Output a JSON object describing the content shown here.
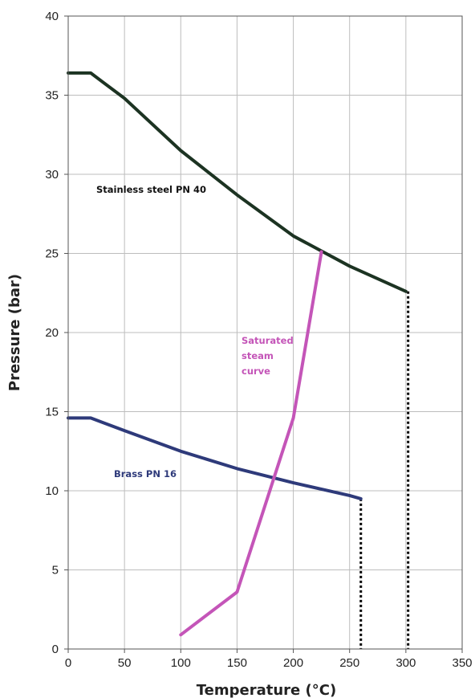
{
  "chart_data": {
    "type": "line",
    "title": "",
    "xlabel": "Temperature (°C)",
    "ylabel": "Pressure (bar)",
    "xlim": [
      0,
      350
    ],
    "ylim": [
      0,
      40
    ],
    "xticks": [
      0,
      50,
      100,
      150,
      200,
      250,
      300,
      350
    ],
    "yticks": [
      0,
      5,
      10,
      15,
      20,
      25,
      30,
      35,
      40
    ],
    "grid": true,
    "legend": "none",
    "series": [
      {
        "name": "Stainless steel PN 40",
        "color": "#1c3322",
        "style": "solid",
        "x": [
          0,
          20,
          50,
          100,
          150,
          200,
          250,
          300
        ],
        "y": [
          36.4,
          36.4,
          34.8,
          31.5,
          28.7,
          26.1,
          24.2,
          22.6
        ]
      },
      {
        "name": "Brass PN 16",
        "color": "#2e3a7a",
        "style": "solid",
        "x": [
          0,
          20,
          50,
          100,
          150,
          200,
          250,
          260
        ],
        "y": [
          14.6,
          14.6,
          13.8,
          12.5,
          11.4,
          10.5,
          9.7,
          9.5
        ]
      },
      {
        "name": "Saturated steam curve",
        "color": "#c455b8",
        "style": "solid",
        "x": [
          100,
          150,
          200,
          225
        ],
        "y": [
          0.9,
          3.6,
          14.6,
          25.1
        ]
      }
    ],
    "dotted_drops": [
      {
        "x": 260,
        "y_from": 9.5,
        "y_to": 0
      },
      {
        "x": 302,
        "y_from": 22.6,
        "y_to": 0
      }
    ],
    "annotations": [
      {
        "text": "Stainless steel PN 40",
        "color": "#111111"
      },
      {
        "text": "Saturated",
        "color": "#c455b8"
      },
      {
        "text": "steam",
        "color": "#c455b8"
      },
      {
        "text": "curve",
        "color": "#c455b8"
      },
      {
        "text": "Brass PN 16",
        "color": "#2e3a7a"
      }
    ]
  }
}
